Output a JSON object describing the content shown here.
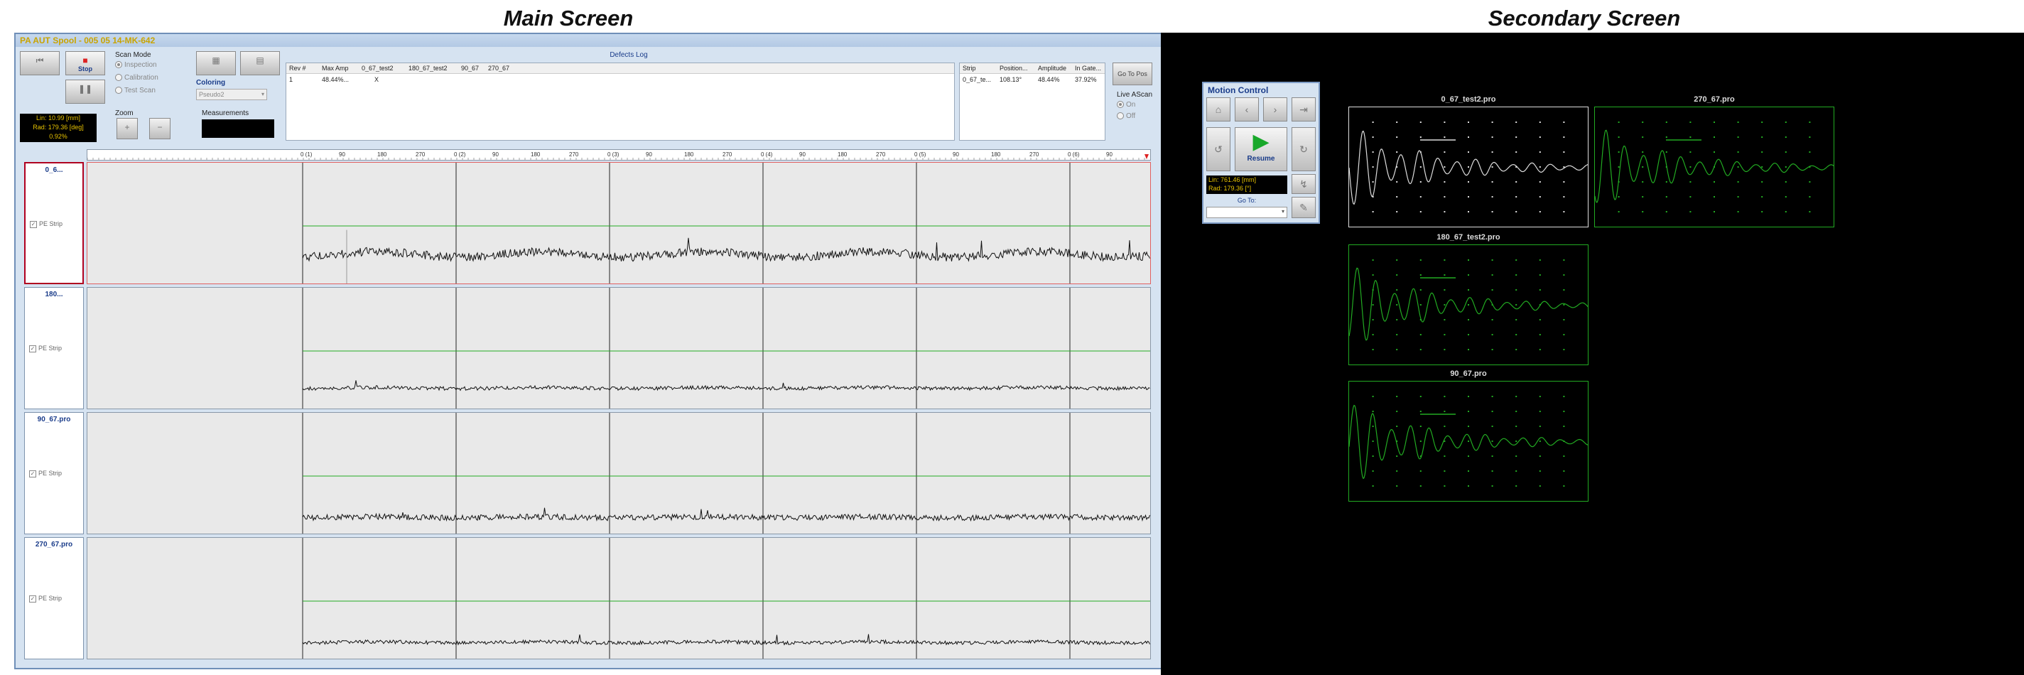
{
  "screens": {
    "main_title": "Main Screen",
    "secondary_title": "Secondary Screen"
  },
  "main": {
    "window_title": "PA AUT Spool - 005 05 14-MK-642",
    "toolbar": {
      "stop_label": "Stop",
      "scan_mode_label": "Scan Mode",
      "scan_modes": [
        "Inspection",
        "Calibration",
        "Test Scan"
      ],
      "selected_scan_mode": "Inspection",
      "coloring_label": "Coloring",
      "coloring_value": "Pseudo2",
      "zoom_label": "Zoom",
      "measurements_label": "Measurements"
    },
    "position_readout": {
      "lin": "Lin: 10.99 [mm]",
      "rad": "Rad: 179.36 [deg]",
      "pct": "0.92%"
    },
    "defects_log": {
      "title": "Defects Log",
      "columns": [
        "Rev #",
        "Max Amp",
        "0_67_test2",
        "180_67_test2",
        "90_67",
        "270_67"
      ],
      "rows": [
        [
          "1",
          "48.44%...",
          "X",
          "",
          "",
          ""
        ]
      ]
    },
    "strip_table": {
      "columns": [
        "Strip",
        "Position...",
        "Amplitude",
        "In Gate..."
      ],
      "rows": [
        [
          "0_67_te...",
          "108.13°",
          "48.44%",
          "37.92%"
        ]
      ]
    },
    "goto_pos_label": "Go To Pos",
    "live_ascan": {
      "label": "Live AScan",
      "options": [
        "On",
        "Off"
      ],
      "selected": "On"
    },
    "ruler_labels": [
      "0 (1)",
      "90",
      "180",
      "270",
      "0 (2)",
      "90",
      "180",
      "270",
      "0 (3)",
      "90",
      "180",
      "270",
      "0 (4)",
      "90",
      "180",
      "270",
      "0 (5)",
      "90",
      "180",
      "270",
      "0 (6)",
      "90"
    ],
    "strips": [
      {
        "name": "0_6...",
        "check_label": "PE Strip",
        "selected": true
      },
      {
        "name": "180...",
        "check_label": "PE Strip",
        "selected": false
      },
      {
        "name": "90_67.pro",
        "check_label": "PE Strip",
        "selected": false
      },
      {
        "name": "270_67.pro",
        "check_label": "PE Strip",
        "selected": false
      }
    ]
  },
  "motion_control": {
    "title": "Motion Control",
    "resume_label": "Resume",
    "lin": "Lin: 761.46 [mm]",
    "rad": "Rad: 179.36 [°]",
    "goto_label": "Go To:"
  },
  "ascans": [
    {
      "title": "0_67_test2.pro",
      "color": "#dddddd"
    },
    {
      "title": "270_67.pro",
      "color": "#22aa22"
    },
    {
      "title": "180_67_test2.pro",
      "color": "#22aa22"
    },
    {
      "title": "90_67.pro",
      "color": "#22aa22"
    }
  ],
  "colors": {
    "accent_title": "#c9a400",
    "selection": "#b00020",
    "ascan_green": "#22aa22"
  }
}
